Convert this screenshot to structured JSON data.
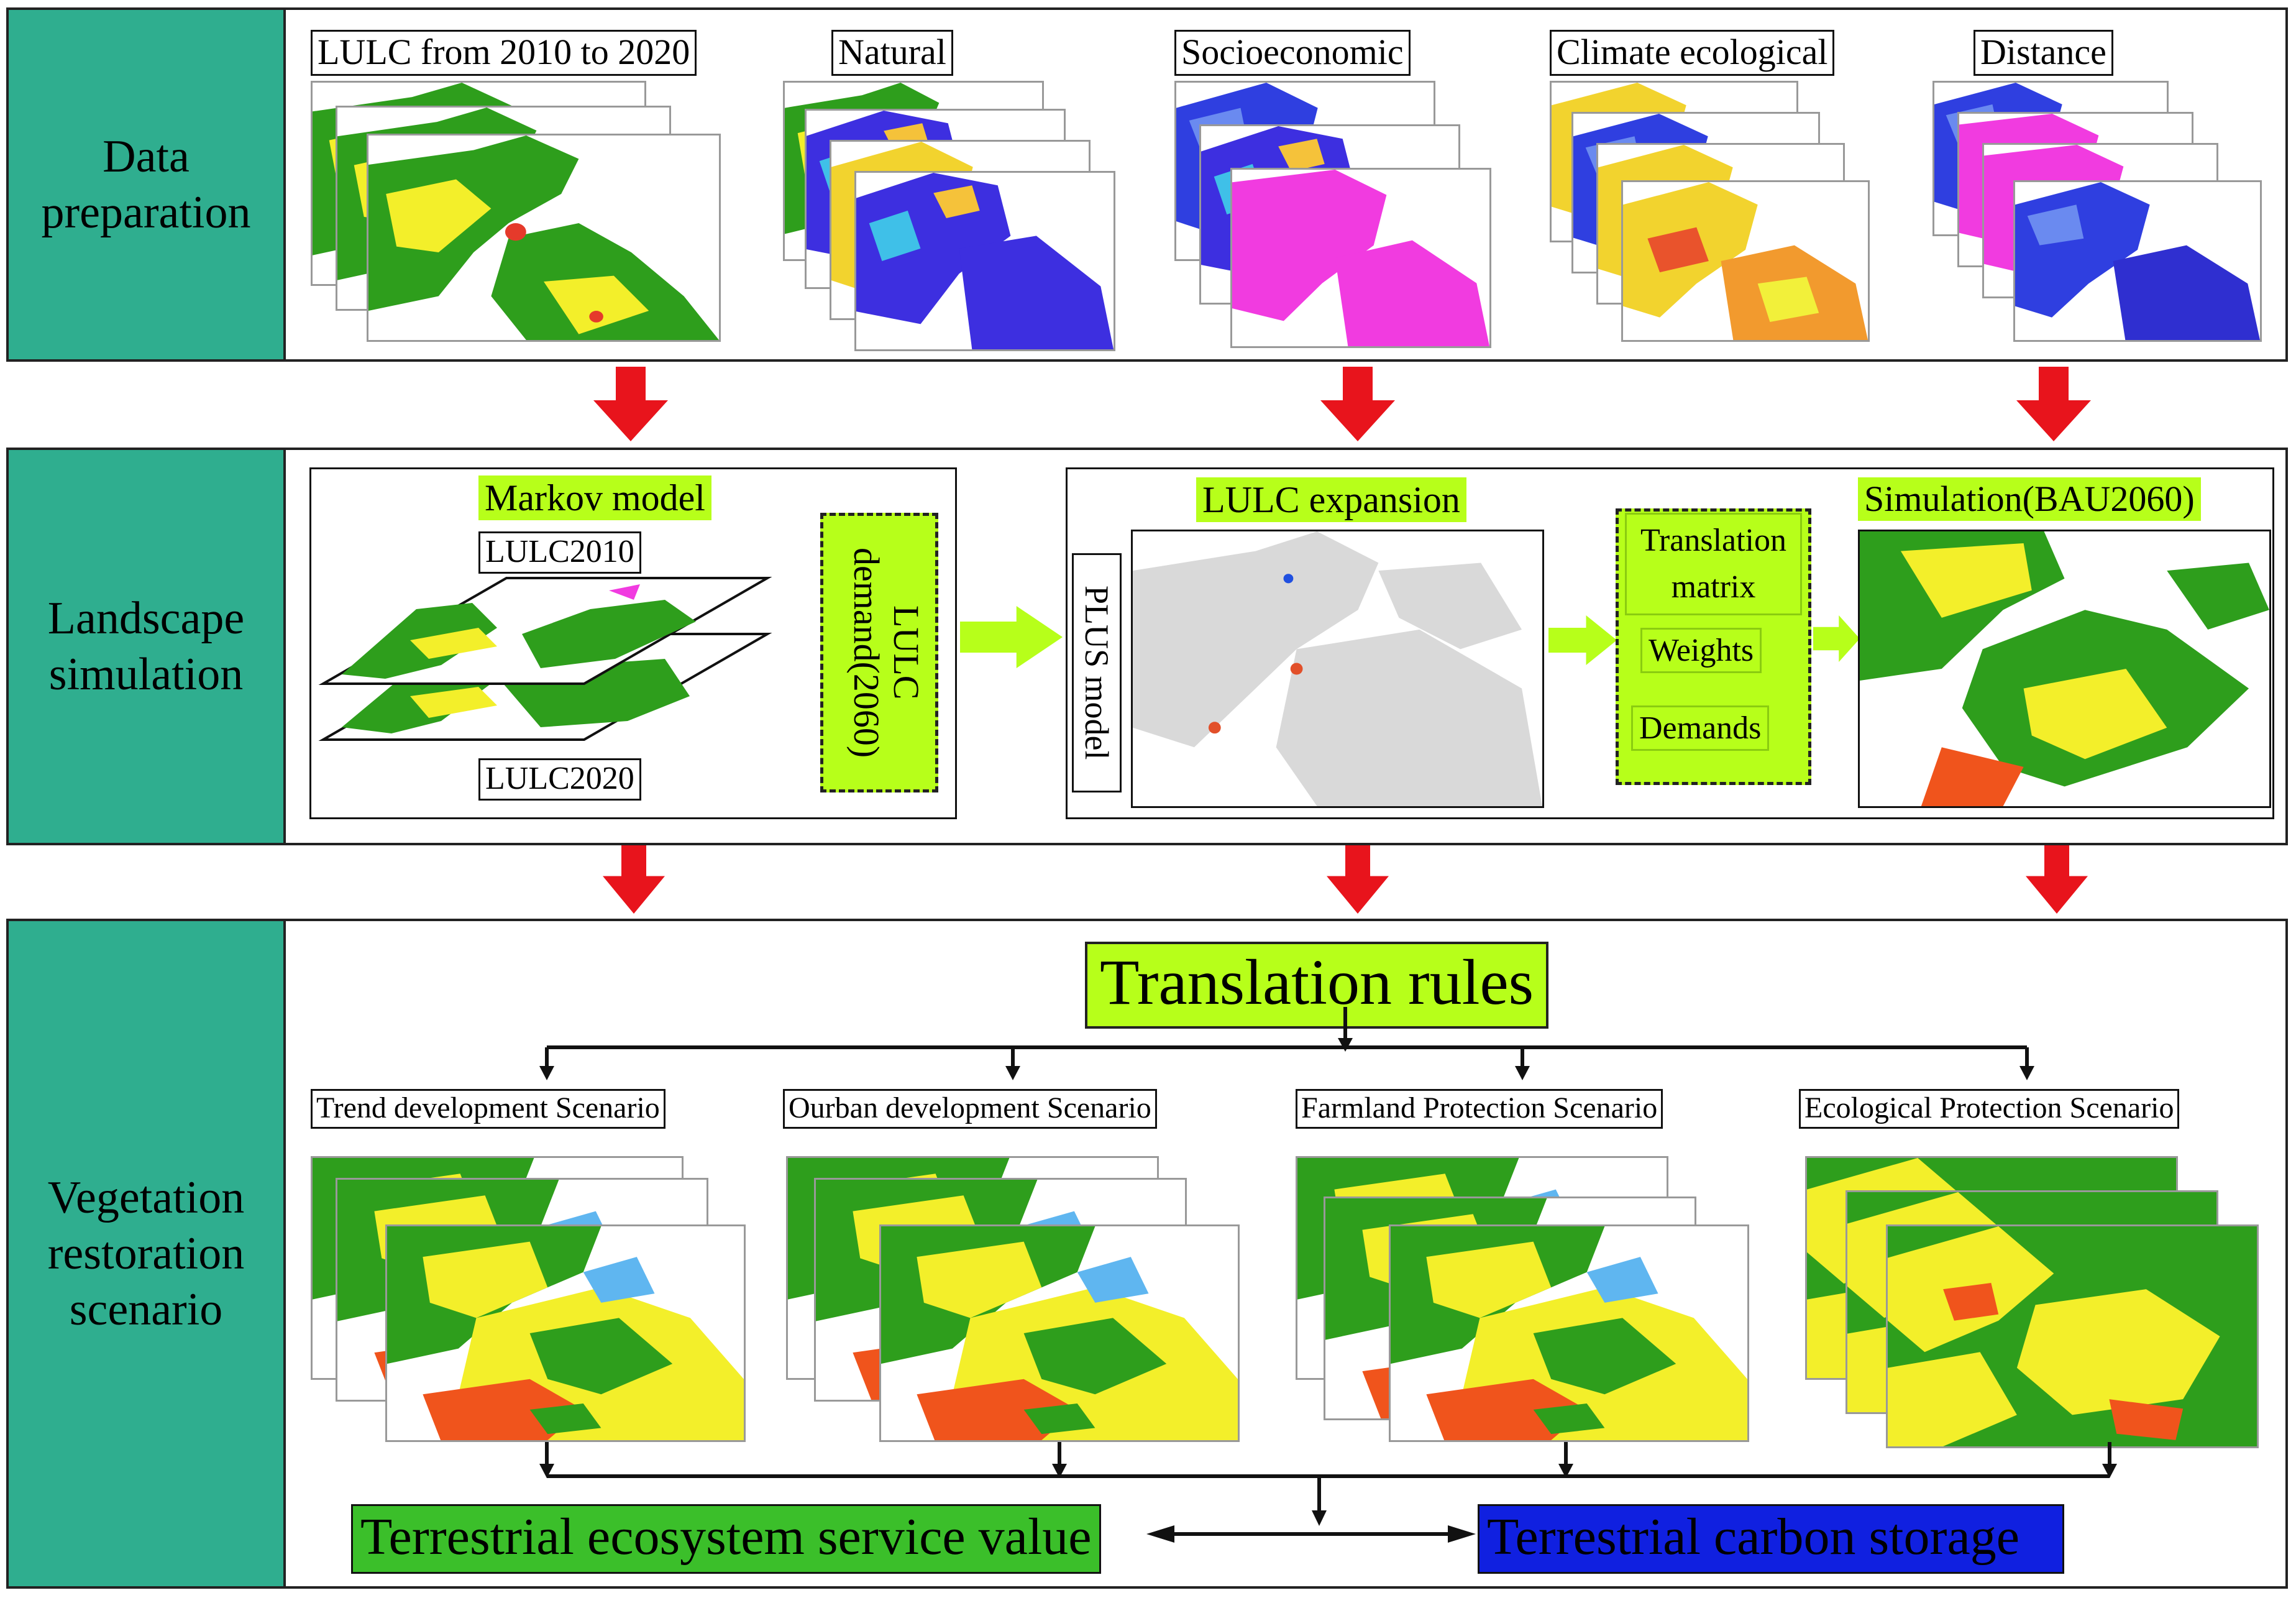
{
  "sections": {
    "data_preparation": "Data\npreparation",
    "landscape_simulation": "Landscape\nsimulation",
    "vegetation_restoration": "Vegetation\nrestoration\nscenario"
  },
  "data_prep_labels": {
    "lulc": "LULC from 2010 to 2020",
    "natural": "Natural",
    "socioeconomic": "Socioeconomic",
    "climate": "Climate ecological",
    "distance": "Distance"
  },
  "markov": {
    "title": "Markov  model",
    "lulc2010": "LULC2010",
    "lulc2020": "LULC2020",
    "demand": "LULC demand(2060)"
  },
  "plus": {
    "model": "PLUS model",
    "expansion": "LULC  expansion",
    "matrix": "Translation matrix",
    "weights": "Weights",
    "demands": "Demands",
    "simulation": "Simulation(BAU2060)"
  },
  "rules": "Translation rules",
  "scenarios": [
    "Trend development Scenario",
    "Ourban development Scenario",
    "Farmland Protection Scenario",
    "Ecological Protection Scenario"
  ],
  "outputs": {
    "esv": "Terrestrial ecosystem service value",
    "carbon": "Terrestrial  carbon storage"
  },
  "colors": {
    "teal": "#2fae8f",
    "lime": "#b7ff1a",
    "arrow_red": "#e8141c",
    "arrow_lime": "#b7ff1a",
    "esv_green": "#3bbf2a",
    "carbon_blue": "#1020e0"
  }
}
